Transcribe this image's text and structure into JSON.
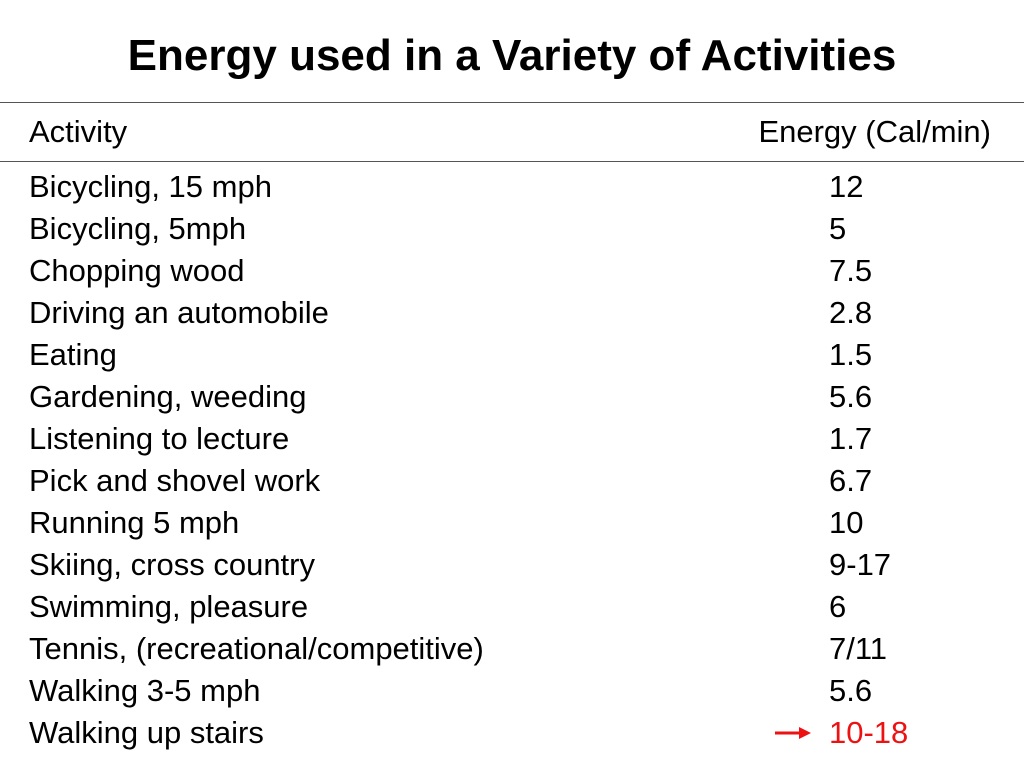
{
  "title": "Energy used in a Variety of Activities",
  "table": {
    "headers": {
      "activity": "Activity",
      "energy": "Energy (Cal/min)"
    },
    "rows": [
      {
        "activity": "Bicycling, 15 mph",
        "energy": "12"
      },
      {
        "activity": "Bicycling, 5mph",
        "energy": "5"
      },
      {
        "activity": "Chopping wood",
        "energy": "7.5"
      },
      {
        "activity": "Driving an automobile",
        "energy": "2.8"
      },
      {
        "activity": "Eating",
        "energy": "1.5"
      },
      {
        "activity": "Gardening, weeding",
        "energy": "5.6"
      },
      {
        "activity": "Listening to lecture",
        "energy": "1.7"
      },
      {
        "activity": "Pick and shovel work",
        "energy": "6.7"
      },
      {
        "activity": "Running  5 mph",
        "energy": "10"
      },
      {
        "activity": "Skiing, cross country",
        "energy": "9-17"
      },
      {
        "activity": "Swimming, pleasure",
        "energy": "6"
      },
      {
        "activity": "Tennis, (recreational/competitive)",
        "energy": "7/11"
      },
      {
        "activity": "Walking 3-5 mph",
        "energy": "5.6"
      },
      {
        "activity": "Walking up stairs",
        "energy": "10-18"
      }
    ]
  },
  "highlight": {
    "row_index": 13,
    "color": "#ee1111",
    "icon": "right-arrow-icon"
  }
}
